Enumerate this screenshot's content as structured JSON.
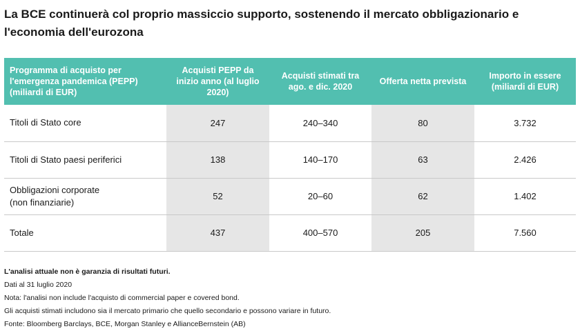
{
  "title": "La BCE continuerà col proprio massiccio supporto, sostenendo il mercato obbligazionario e l'economia dell'eurozona",
  "table": {
    "headers": [
      "Programma di acquisto per l'emergenza pandemica (PEPP) (miliardi di EUR)",
      "Acquisti PEPP da inizio anno (al luglio 2020)",
      "Acquisti stimati tra ago. e dic. 2020",
      "Offerta netta prevista",
      "Importo in essere (miliardi di EUR)"
    ],
    "rows": [
      {
        "label": "Titoli di Stato core",
        "cells": [
          "247",
          "240–340",
          "80",
          "3.732"
        ]
      },
      {
        "label": "Titoli di Stato paesi periferici",
        "cells": [
          "138",
          "140–170",
          "63",
          "2.426"
        ]
      },
      {
        "label": "Obbligazioni corporate (non finanziarie)",
        "cells": [
          "52",
          "20–60",
          "62",
          "1.402"
        ]
      },
      {
        "label": "Totale",
        "cells": [
          "437",
          "400–570",
          "205",
          "7.560"
        ]
      }
    ]
  },
  "notes": {
    "disclaimer": "L'analisi attuale non è garanzia di risultati futuri.",
    "date": "Dati al 31 luglio 2020",
    "note1": "Nota: l'analisi non include l'acquisto di commercial paper e covered bond.",
    "note2": "Gli acquisti stimati includono sia il mercato primario che quello secondario e possono variare in futuro.",
    "source": "Fonte: Bloomberg Barclays, BCE, Morgan Stanley e AllianceBernstein (AB)"
  }
}
